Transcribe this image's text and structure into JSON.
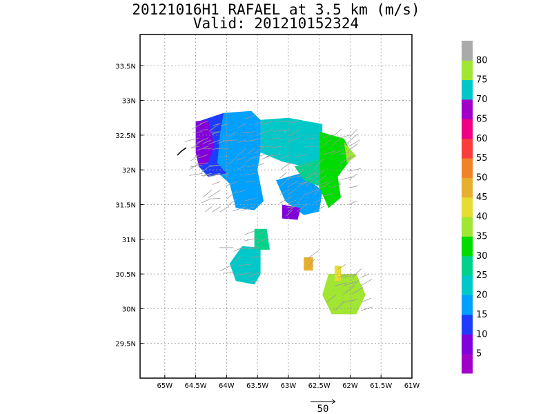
{
  "chart_data": {
    "type": "heatmap",
    "title": "20121016H1 RAFAEL at 3.5 km (m/s)",
    "subtitle": "Valid: 201210152324",
    "xlim": [
      -65.4,
      -61.0
    ],
    "ylim": [
      29.0,
      33.95
    ],
    "xticks": [
      {
        "v": -65.0,
        "label": "65W"
      },
      {
        "v": -64.5,
        "label": "64.5W"
      },
      {
        "v": -64.0,
        "label": "64W"
      },
      {
        "v": -63.5,
        "label": "63.5W"
      },
      {
        "v": -63.0,
        "label": "63W"
      },
      {
        "v": -62.5,
        "label": "62.5W"
      },
      {
        "v": -62.0,
        "label": "62W"
      },
      {
        "v": -61.5,
        "label": "61.5W"
      },
      {
        "v": -61.0,
        "label": "61W"
      }
    ],
    "yticks": [
      {
        "v": 29.5,
        "label": "29.5N"
      },
      {
        "v": 30.0,
        "label": "30N"
      },
      {
        "v": 30.5,
        "label": "30.5N"
      },
      {
        "v": 31.0,
        "label": "31N"
      },
      {
        "v": 31.5,
        "label": "31.5N"
      },
      {
        "v": 32.0,
        "label": "32N"
      },
      {
        "v": 32.5,
        "label": "32.5N"
      },
      {
        "v": 33.0,
        "label": "33N"
      },
      {
        "v": 33.5,
        "label": "33.5N"
      }
    ],
    "grid": true,
    "colorbar": {
      "colors": [
        "#a000c8",
        "#8200dc",
        "#1e3cff",
        "#00a0ff",
        "#00c8c8",
        "#00d28c",
        "#00dc00",
        "#a0e632",
        "#e6dc32",
        "#e6af2d",
        "#f08228",
        "#fa3c3c",
        "#f00082",
        "#a000c8",
        "#00c8c8",
        "#a0e632",
        "#aaaaaa"
      ],
      "labels": [
        "5",
        "10",
        "15",
        "20",
        "25",
        "30",
        "35",
        "40",
        "45",
        "50",
        "55",
        "60",
        "65",
        "70",
        "75",
        "80"
      ]
    },
    "regions": [
      {
        "color_index": 4,
        "points": [
          [
            -63.45,
            32.72
          ],
          [
            -63.0,
            32.75
          ],
          [
            -62.45,
            32.66
          ],
          [
            -62.45,
            32.1
          ],
          [
            -62.75,
            32.05
          ],
          [
            -63.1,
            32.12
          ],
          [
            -63.45,
            32.25
          ]
        ]
      },
      {
        "color_index": 3,
        "points": [
          [
            -64.05,
            32.82
          ],
          [
            -63.6,
            32.85
          ],
          [
            -63.45,
            32.72
          ],
          [
            -63.45,
            32.25
          ],
          [
            -63.5,
            32.0
          ],
          [
            -63.4,
            31.55
          ],
          [
            -63.55,
            31.42
          ],
          [
            -63.85,
            31.45
          ],
          [
            -63.95,
            31.8
          ],
          [
            -64.25,
            32.05
          ],
          [
            -64.3,
            32.5
          ]
        ]
      },
      {
        "color_index": 2,
        "points": [
          [
            -64.45,
            32.7
          ],
          [
            -64.05,
            32.82
          ],
          [
            -64.1,
            32.55
          ],
          [
            -64.15,
            32.1
          ],
          [
            -64.0,
            31.95
          ],
          [
            -64.3,
            31.9
          ],
          [
            -64.45,
            32.05
          ]
        ]
      },
      {
        "color_index": 1,
        "points": [
          [
            -64.5,
            32.7
          ],
          [
            -64.3,
            32.72
          ],
          [
            -64.2,
            32.35
          ],
          [
            -64.3,
            32.1
          ],
          [
            -64.45,
            32.05
          ],
          [
            -64.5,
            32.25
          ]
        ]
      },
      {
        "color_index": 4,
        "points": [
          [
            -63.75,
            30.9
          ],
          [
            -63.45,
            30.88
          ],
          [
            -63.45,
            30.5
          ],
          [
            -63.55,
            30.35
          ],
          [
            -63.85,
            30.4
          ],
          [
            -63.95,
            30.65
          ]
        ]
      },
      {
        "color_index": 5,
        "points": [
          [
            -63.55,
            31.15
          ],
          [
            -63.35,
            31.15
          ],
          [
            -63.3,
            30.85
          ],
          [
            -63.55,
            30.85
          ]
        ]
      },
      {
        "color_index": 3,
        "points": [
          [
            -63.2,
            31.85
          ],
          [
            -62.8,
            31.95
          ],
          [
            -62.45,
            31.7
          ],
          [
            -62.5,
            31.4
          ],
          [
            -62.75,
            31.35
          ],
          [
            -63.05,
            31.55
          ]
        ]
      },
      {
        "color_index": 1,
        "points": [
          [
            -63.1,
            31.5
          ],
          [
            -62.8,
            31.45
          ],
          [
            -62.85,
            31.28
          ],
          [
            -63.1,
            31.3
          ]
        ]
      },
      {
        "color_index": 5,
        "points": [
          [
            -62.9,
            32.05
          ],
          [
            -62.5,
            32.15
          ],
          [
            -62.45,
            31.75
          ],
          [
            -62.75,
            31.85
          ]
        ]
      },
      {
        "color_index": 6,
        "points": [
          [
            -62.5,
            32.55
          ],
          [
            -62.1,
            32.45
          ],
          [
            -61.95,
            32.2
          ],
          [
            -62.2,
            31.9
          ],
          [
            -62.15,
            31.6
          ],
          [
            -62.35,
            31.45
          ],
          [
            -62.5,
            31.75
          ]
        ]
      },
      {
        "color_index": 7,
        "points": [
          [
            -62.1,
            32.4
          ],
          [
            -61.9,
            32.2
          ],
          [
            -62.05,
            32.1
          ]
        ]
      },
      {
        "color_index": 7,
        "points": [
          [
            -62.35,
            30.5
          ],
          [
            -61.9,
            30.5
          ],
          [
            -61.75,
            30.2
          ],
          [
            -61.9,
            29.92
          ],
          [
            -62.3,
            29.92
          ],
          [
            -62.45,
            30.2
          ]
        ]
      },
      {
        "color_index": 8,
        "points": [
          [
            -62.25,
            30.62
          ],
          [
            -62.15,
            30.62
          ],
          [
            -62.15,
            30.4
          ],
          [
            -62.25,
            30.4
          ]
        ]
      },
      {
        "color_index": 9,
        "points": [
          [
            -62.75,
            30.74
          ],
          [
            -62.6,
            30.74
          ],
          [
            -62.6,
            30.55
          ],
          [
            -62.75,
            30.55
          ]
        ]
      }
    ],
    "vector_reference": {
      "label": "50"
    }
  }
}
